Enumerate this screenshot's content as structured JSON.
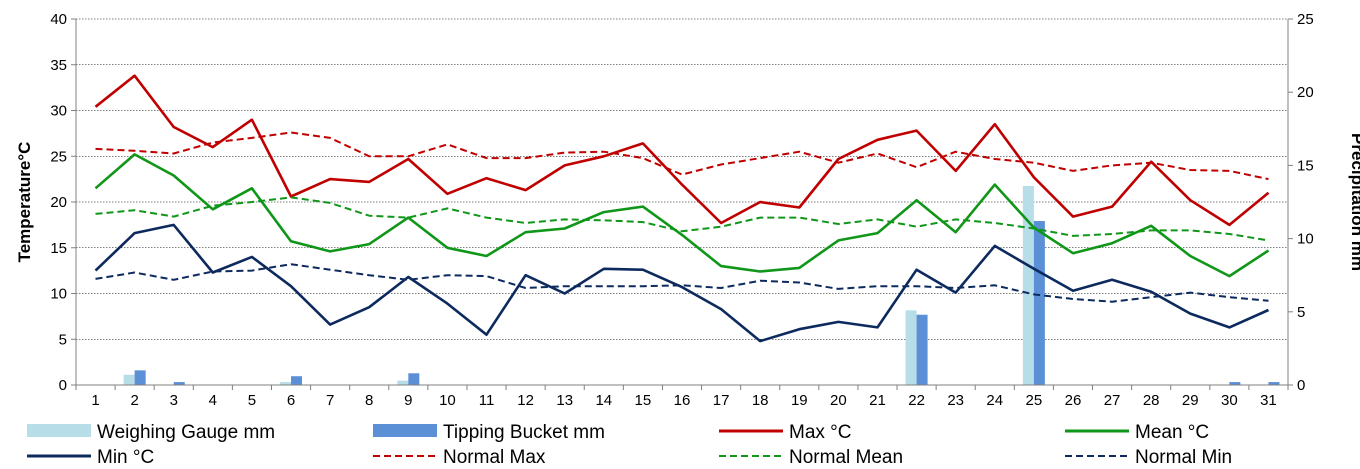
{
  "chart_data": {
    "type": "line",
    "title": "",
    "x": [
      1,
      2,
      3,
      4,
      5,
      6,
      7,
      8,
      9,
      10,
      11,
      12,
      13,
      14,
      15,
      16,
      17,
      18,
      19,
      20,
      21,
      22,
      23,
      24,
      25,
      26,
      27,
      28,
      29,
      30,
      31
    ],
    "ylabel": "Temperature°C",
    "y2label": "Precipitation mm",
    "ylim": [
      0,
      40
    ],
    "yticks": [
      0,
      5,
      10,
      15,
      20,
      25,
      30,
      35,
      40
    ],
    "y2lim": [
      0,
      25
    ],
    "y2ticks": [
      0,
      5,
      10,
      15,
      20,
      25
    ],
    "grid": true,
    "legend_position": "bottom",
    "bars": [
      {
        "name": "Weighing Gauge mm",
        "color": "#b7dde8",
        "axis": "right",
        "values": [
          0,
          0.7,
          0,
          0,
          0,
          0.2,
          0,
          0,
          0.3,
          0,
          0,
          0,
          0,
          0,
          0,
          0,
          0,
          0,
          0,
          0,
          0,
          5.1,
          0,
          0,
          13.6,
          0,
          0,
          0,
          0,
          0,
          0
        ]
      },
      {
        "name": "Tipping Bucket mm",
        "color": "#5b8fd6",
        "axis": "right",
        "values": [
          0,
          1.0,
          0.2,
          0,
          0,
          0.6,
          0,
          0,
          0.8,
          0,
          0,
          0,
          0,
          0,
          0,
          0,
          0,
          0,
          0,
          0,
          0,
          4.8,
          0,
          0,
          11.2,
          0,
          0,
          0,
          0,
          0.2,
          0.2
        ]
      }
    ],
    "series": [
      {
        "name": "Max °C",
        "color": "#c00000",
        "style": "solid",
        "values": [
          30.4,
          33.8,
          28.2,
          26.0,
          29.0,
          20.6,
          22.5,
          22.2,
          24.7,
          20.9,
          22.6,
          21.3,
          24.0,
          25.0,
          26.4,
          21.9,
          17.7,
          20.0,
          19.4,
          24.7,
          26.8,
          27.8,
          23.4,
          28.5,
          22.7,
          18.4,
          19.5,
          24.4,
          20.2,
          17.5,
          21.0
        ]
      },
      {
        "name": "Mean °C",
        "color": "#109618",
        "style": "solid",
        "values": [
          21.5,
          25.2,
          22.9,
          19.2,
          21.5,
          15.7,
          14.6,
          15.4,
          18.3,
          15.0,
          14.1,
          16.7,
          17.1,
          18.9,
          19.5,
          16.4,
          13.0,
          12.4,
          12.8,
          15.8,
          16.6,
          20.2,
          16.7,
          21.9,
          17.2,
          14.4,
          15.5,
          17.4,
          14.1,
          11.9,
          14.7
        ]
      },
      {
        "name": "Min °C",
        "color": "#0d2a5e",
        "style": "solid",
        "values": [
          12.5,
          16.6,
          17.5,
          12.3,
          14.0,
          10.8,
          6.6,
          8.5,
          11.8,
          8.9,
          5.5,
          12.0,
          10.0,
          12.7,
          12.6,
          10.7,
          8.3,
          4.8,
          6.1,
          6.9,
          6.3,
          12.6,
          10.1,
          15.2,
          12.7,
          10.3,
          11.5,
          10.2,
          7.8,
          6.3,
          8.2
        ]
      },
      {
        "name": "Normal Max",
        "color": "#c00000",
        "style": "dashed",
        "values": [
          25.8,
          25.6,
          25.3,
          26.5,
          27.0,
          27.6,
          27.0,
          25.0,
          25.0,
          26.3,
          24.8,
          24.8,
          25.4,
          25.5,
          24.8,
          23.0,
          24.1,
          24.8,
          25.5,
          24.3,
          25.3,
          23.8,
          25.5,
          24.7,
          24.3,
          23.4,
          24.0,
          24.3,
          23.5,
          23.4,
          22.5
        ]
      },
      {
        "name": "Normal Mean",
        "color": "#109618",
        "style": "dashed",
        "values": [
          18.7,
          19.1,
          18.4,
          19.6,
          20.0,
          20.5,
          19.9,
          18.5,
          18.3,
          19.3,
          18.3,
          17.7,
          18.1,
          18.0,
          17.8,
          16.8,
          17.3,
          18.3,
          18.3,
          17.6,
          18.1,
          17.3,
          18.1,
          17.7,
          17.1,
          16.3,
          16.5,
          16.9,
          16.9,
          16.5,
          15.8
        ]
      },
      {
        "name": "Normal Min",
        "color": "#0d2a5e",
        "style": "dashed",
        "values": [
          11.6,
          12.3,
          11.5,
          12.4,
          12.5,
          13.2,
          12.6,
          12.0,
          11.5,
          12.0,
          11.9,
          10.6,
          10.8,
          10.8,
          10.8,
          10.9,
          10.6,
          11.4,
          11.2,
          10.5,
          10.8,
          10.8,
          10.6,
          10.9,
          9.9,
          9.4,
          9.1,
          9.6,
          10.1,
          9.6,
          9.2
        ]
      }
    ]
  }
}
